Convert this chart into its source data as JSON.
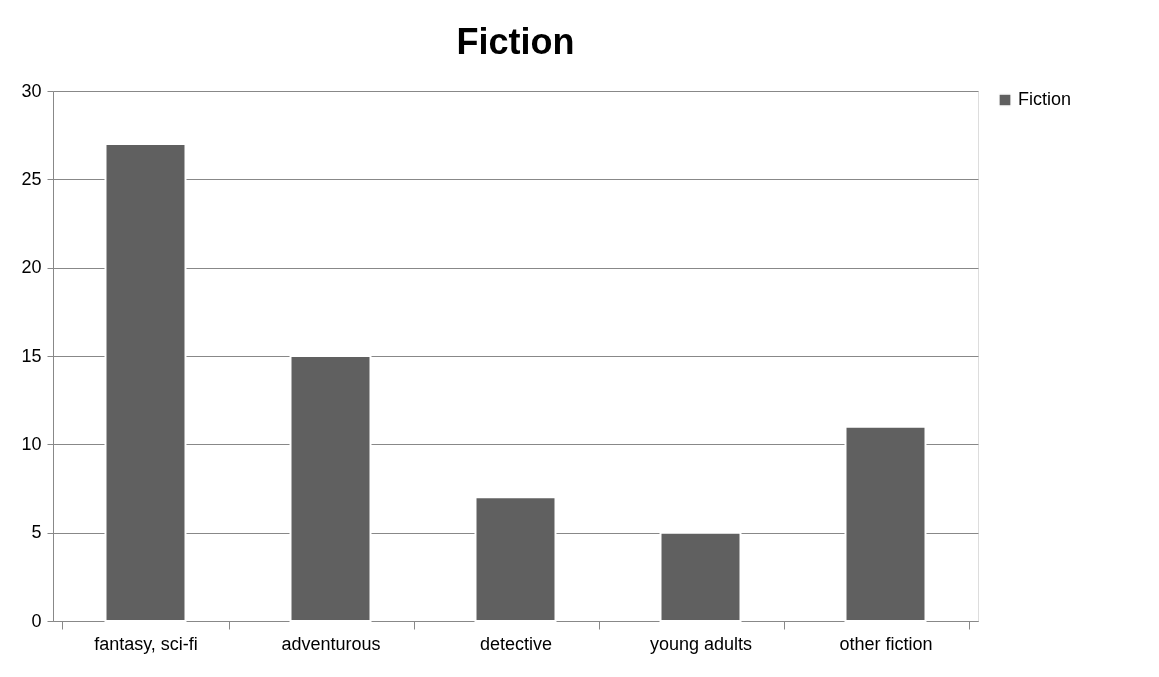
{
  "chart_data": {
    "type": "bar",
    "title": "Fiction",
    "categories": [
      "fantasy, sci-fi",
      "adventurous",
      "detective",
      "young adults",
      "other fiction"
    ],
    "series": [
      {
        "name": "Fiction",
        "color": "#606060",
        "values": [
          27,
          15,
          7,
          5,
          11
        ]
      }
    ],
    "ylim": [
      0,
      30
    ],
    "yticks": [
      0,
      5,
      10,
      15,
      20,
      25,
      30
    ],
    "grid": "y",
    "legend": "right"
  }
}
